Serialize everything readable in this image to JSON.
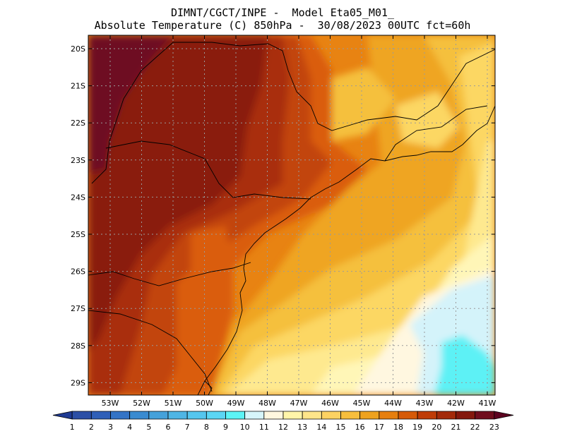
{
  "title": {
    "line1": "DIMNT/CGCT/INPE -  Model Eta05_M01_",
    "line2": "Absolute Temperature (C) 850hPa -  30/08/2023 00UTC fct=60h"
  },
  "axes": {
    "lat_labels": [
      "20S",
      "21S",
      "22S",
      "23S",
      "24S",
      "25S",
      "26S",
      "27S",
      "28S",
      "29S"
    ],
    "lon_labels": [
      "53W",
      "52W",
      "51W",
      "50W",
      "49W",
      "48W",
      "47W",
      "46W",
      "45W",
      "44W",
      "43W",
      "42W",
      "41W"
    ]
  },
  "colorbar": {
    "labels": [
      "1",
      "2",
      "3",
      "4",
      "5",
      "6",
      "7",
      "8",
      "9",
      "10",
      "11",
      "12",
      "13",
      "14",
      "15",
      "16",
      "17",
      "18",
      "19",
      "20",
      "21",
      "22",
      "23"
    ],
    "colors": [
      "#1f3a93",
      "#2c4fa6",
      "#2f5fb8",
      "#3474c6",
      "#3a8bd0",
      "#45a1da",
      "#4fb5e4",
      "#55c6ee",
      "#5bd6f4",
      "#5cf4f6",
      "#d6f5fa",
      "#fff7df",
      "#fff5a9",
      "#fee58a",
      "#fdd262",
      "#f7be3d",
      "#eea21f",
      "#e67f0f",
      "#d65a08",
      "#bf3c07",
      "#a32a0a",
      "#84180d",
      "#700d1d",
      "#5c0320"
    ]
  },
  "map_colors": {
    "deep": "#6e0a22",
    "dark_red": "#8a1d0e",
    "red": "#a92d09",
    "red_orange": "#c24408",
    "orange_dark": "#da5d0a",
    "orange": "#e88312",
    "amber": "#efa520",
    "yellow_dark": "#f5c03e",
    "yellow": "#fcd764",
    "light_yellow": "#fee98f",
    "pale_yellow": "#fff6b7",
    "cream": "#fff7e0",
    "pale_cyan": "#d4f3fa",
    "cyan": "#5df1f5"
  }
}
